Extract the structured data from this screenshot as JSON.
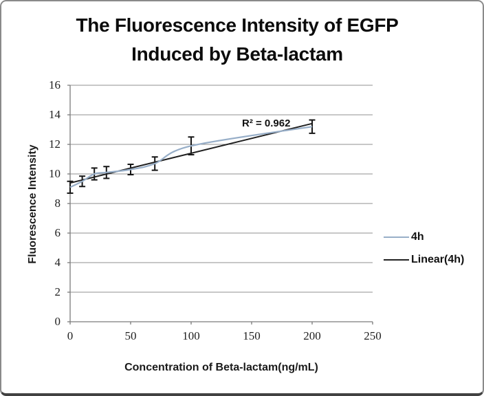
{
  "chart_data": {
    "type": "line",
    "title_line1": "The Fluorescence Intensity of EGFP",
    "title_line2": "Induced by Beta-lactam",
    "xlabel": "Concentration of Beta-lactam(ng/mL)",
    "ylabel": "Fluorescence Intensity",
    "annotation": "R² = 0.962",
    "xlim": [
      0,
      250
    ],
    "ylim": [
      0,
      16
    ],
    "x_ticks": [
      0,
      50,
      100,
      150,
      200,
      250
    ],
    "y_ticks": [
      0,
      2,
      4,
      6,
      8,
      10,
      12,
      14,
      16
    ],
    "grid": "horizontal",
    "legend_position": "right",
    "series": [
      {
        "name": "4h",
        "color": "#97aec8",
        "smooth": true,
        "x": [
          0,
          10,
          20,
          30,
          50,
          70,
          100,
          200
        ],
        "y": [
          9.1,
          9.5,
          10.0,
          10.1,
          10.3,
          10.7,
          11.9,
          13.2
        ],
        "err": [
          0.4,
          0.35,
          0.4,
          0.4,
          0.35,
          0.45,
          0.6,
          0.45
        ]
      },
      {
        "name": "Linear(4h)",
        "color": "#212121",
        "type": "trendline",
        "intercept": 9.39,
        "slope": 0.0201,
        "x_range": [
          0,
          200
        ],
        "r_squared": 0.962
      }
    ],
    "legend": [
      {
        "label": "4h",
        "color": "#97aec8"
      },
      {
        "label": "Linear(4h)",
        "color": "#212121"
      }
    ],
    "colors": {
      "gridline": "#8f8f8f",
      "axis": "#7a7a7a",
      "error_bar": "#141414",
      "text": "#0c0c0c"
    }
  }
}
